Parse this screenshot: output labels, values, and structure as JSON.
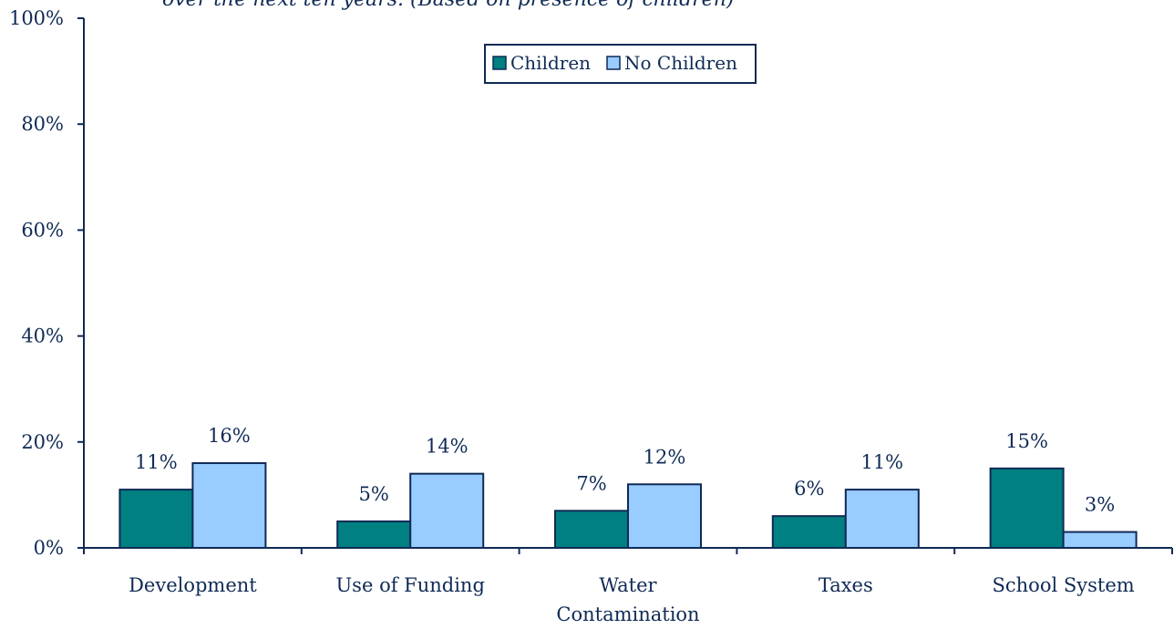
{
  "chart_data": {
    "type": "bar",
    "title": "over the next ten years. (Based on presence of children)",
    "categories": [
      [
        "Development"
      ],
      [
        "Use of Funding"
      ],
      [
        "Water",
        "Contamination"
      ],
      [
        "Taxes"
      ],
      [
        "School System"
      ]
    ],
    "series": [
      {
        "name": "Children",
        "values": [
          11,
          5,
          7,
          6,
          15
        ],
        "color": "#008080"
      },
      {
        "name": "No Children",
        "values": [
          16,
          14,
          12,
          11,
          3
        ],
        "color": "#99ccff"
      }
    ],
    "value_labels": [
      [
        "11%",
        "5%",
        "7%",
        "6%",
        "15%"
      ],
      [
        "16%",
        "14%",
        "12%",
        "11%",
        "3%"
      ]
    ],
    "yticks": [
      0,
      20,
      40,
      60,
      80,
      100
    ],
    "ytick_labels": [
      "0%",
      "20%",
      "40%",
      "60%",
      "80%",
      "100%"
    ],
    "ylim": [
      0,
      100
    ],
    "grid": false,
    "legend_position": "top-center",
    "axis_color": "#0f2a55",
    "bar_outline_color": "#0f2a55"
  }
}
